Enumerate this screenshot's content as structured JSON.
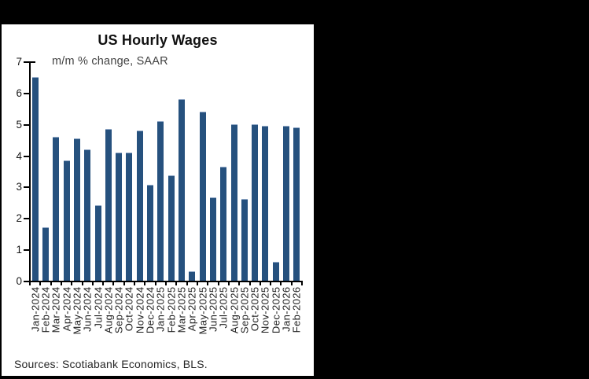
{
  "window": {
    "background_color": "#000000",
    "panel_color": "#ffffff"
  },
  "chart": {
    "title": "US Hourly Wages",
    "subtitle": "m/m % change, SAAR",
    "source": "Sources: Scotiabank Economics, BLS.",
    "bar_color": "#26517E",
    "axis_color": "#000000"
  },
  "chart_data": {
    "type": "bar",
    "title": "US Hourly Wages",
    "subtitle": "m/m % change, SAAR",
    "source": "Sources: Scotiabank Economics, BLS.",
    "categories": [
      "Jan-2024",
      "Feb-2024",
      "Mar-2024",
      "Apr-2024",
      "May-2024",
      "Jun-2024",
      "Jul-2024",
      "Aug-2024",
      "Sep-2024",
      "Oct-2024",
      "Nov-2024",
      "Dec-2024",
      "Jan-2025",
      "Feb-2025",
      "Mar-2025",
      "Apr-2025",
      "May-2025",
      "Jun-2025",
      "Jul-2025",
      "Aug-2025",
      "Sep-2025",
      "Oct-2025",
      "Nov-2025",
      "Dec-2025",
      "Jan-2026",
      "Feb-2026"
    ],
    "values": [
      6.5,
      1.7,
      4.6,
      3.85,
      4.55,
      4.2,
      2.4,
      4.85,
      4.1,
      4.1,
      4.8,
      3.05,
      5.1,
      3.35,
      5.8,
      0.3,
      5.4,
      2.65,
      3.65,
      5.0,
      2.6,
      5.0,
      4.95,
      0.6,
      4.95,
      4.9
    ],
    "xlabel": "",
    "ylabel": "",
    "ylim": [
      0,
      7
    ],
    "y_ticks": [
      0,
      1,
      2,
      3,
      4,
      5,
      6,
      7
    ],
    "grid": false,
    "legend": false,
    "bar_color": "#26517E"
  }
}
